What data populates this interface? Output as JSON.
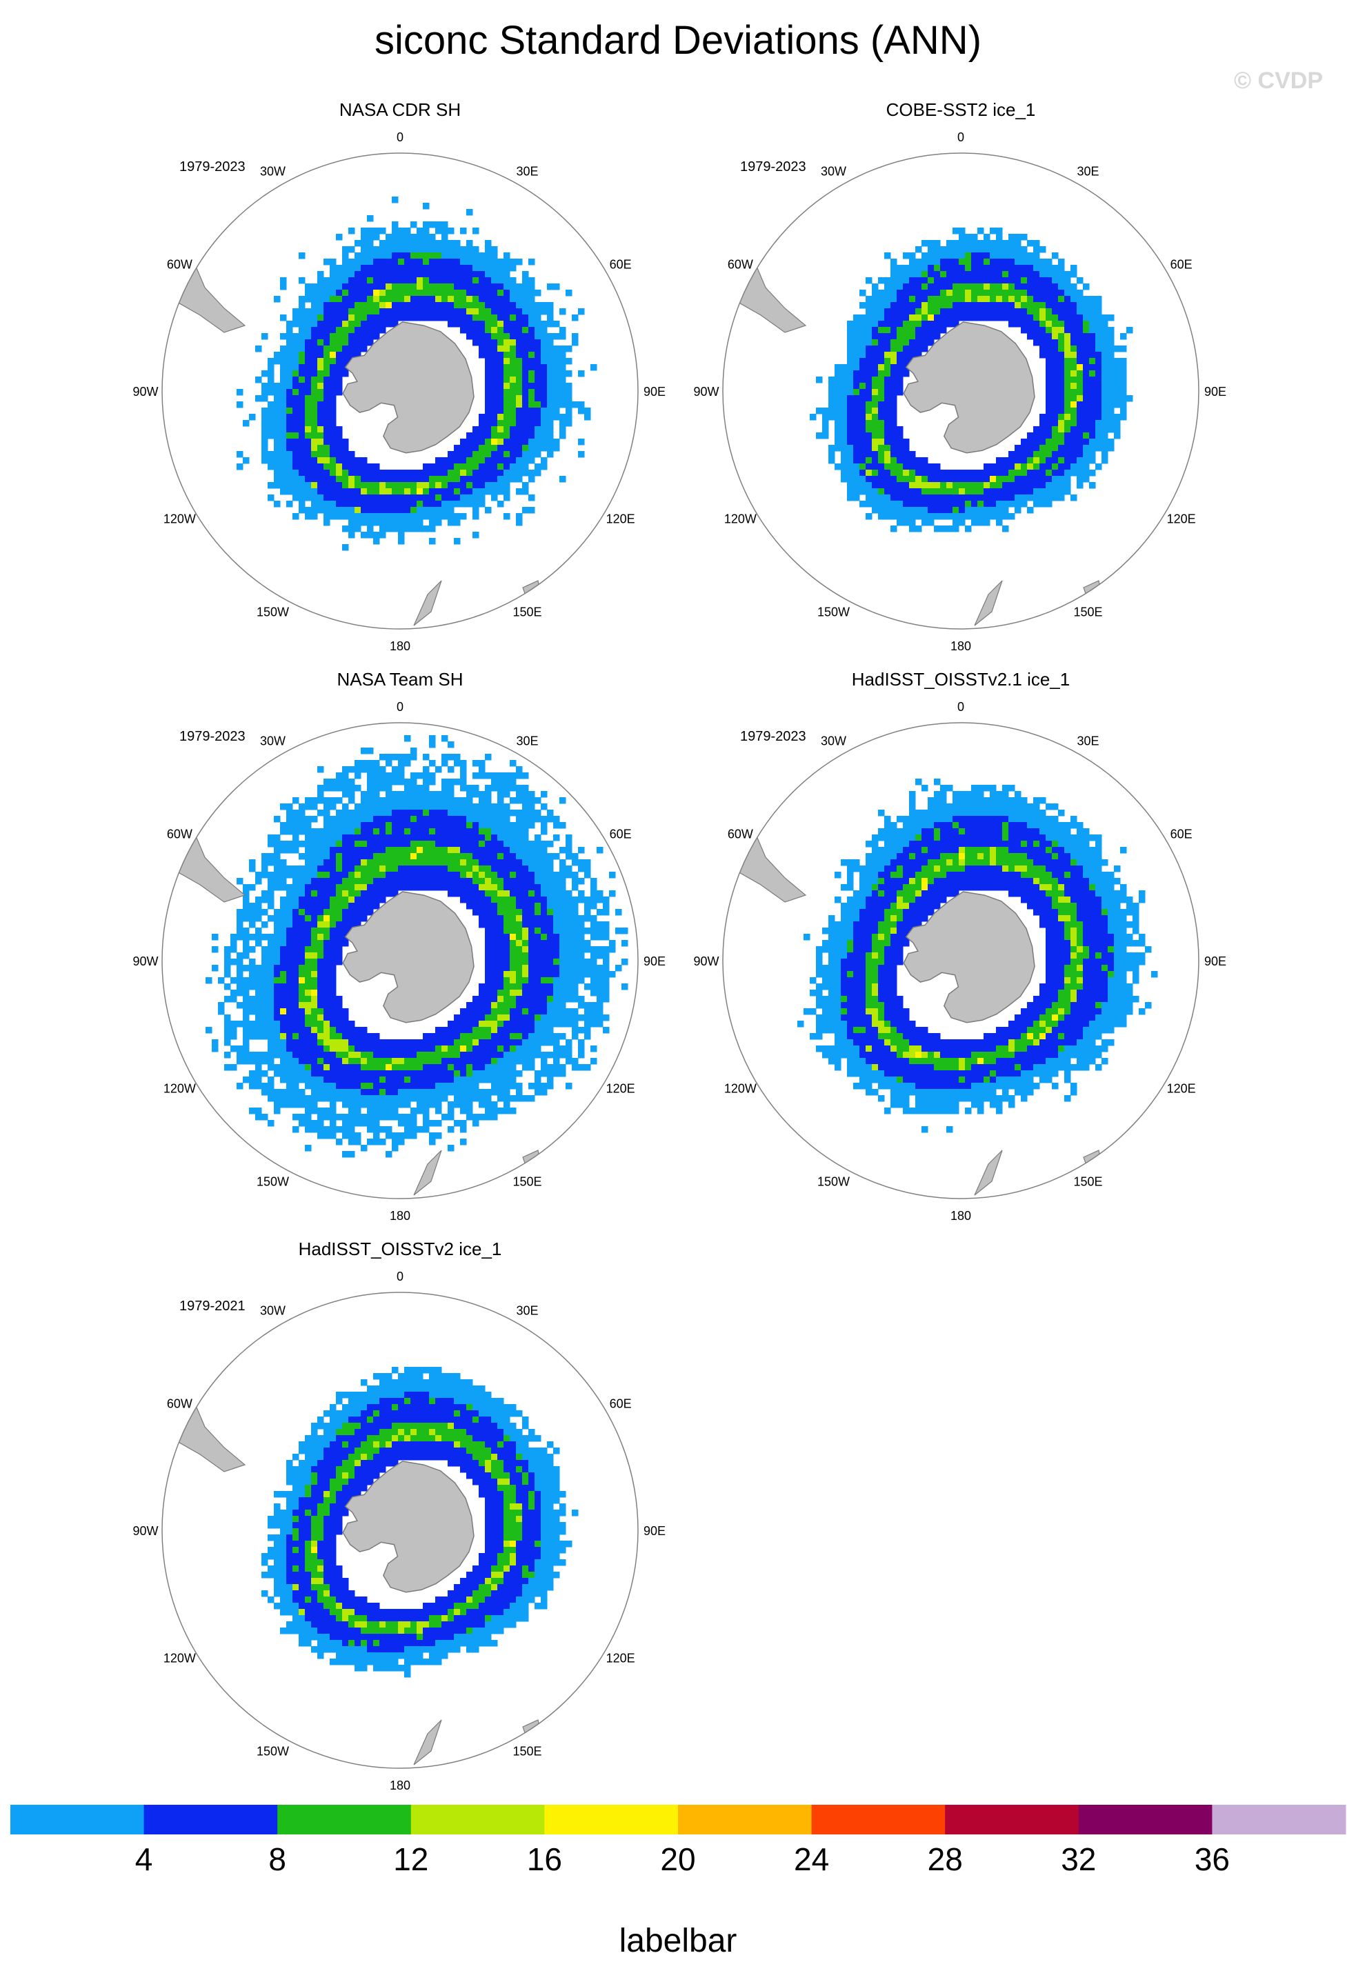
{
  "title": "siconc Standard Deviations (ANN)",
  "watermark": "© CVDP",
  "longitude_labels": [
    "0",
    "30E",
    "60E",
    "90E",
    "120E",
    "150E",
    "180",
    "150W",
    "120W",
    "90W",
    "60W",
    "30W"
  ],
  "colors": {
    "land": "#c0c0c0",
    "coast": "#7a7a7a",
    "watermark": "#d8d8d8"
  },
  "chart_data": [
    {
      "type": "heatmap",
      "title": "NASA CDR SH",
      "period": "1979-2023",
      "projection": "south-polar-stereographic"
    },
    {
      "type": "heatmap",
      "title": "COBE-SST2 ice_1",
      "period": "1979-2023",
      "projection": "south-polar-stereographic"
    },
    {
      "type": "heatmap",
      "title": "NASA Team SH",
      "period": "1979-2023",
      "projection": "south-polar-stereographic"
    },
    {
      "type": "heatmap",
      "title": "HadISST_OISSTv2.1 ice_1",
      "period": "1979-2023",
      "projection": "south-polar-stereographic"
    },
    {
      "type": "heatmap",
      "title": "HadISST_OISSTv2 ice_1",
      "period": "1979-2021",
      "projection": "south-polar-stereographic"
    }
  ],
  "labelbar": {
    "label": "labelbar",
    "ticks": [
      "4",
      "8",
      "12",
      "16",
      "20",
      "24",
      "28",
      "32",
      "36"
    ],
    "colors": [
      "#0fa0f8",
      "#0a28f0",
      "#1ebc18",
      "#b8e806",
      "#fef203",
      "#ffb600",
      "#fd4102",
      "#b60431",
      "#820060",
      "#c8acd8"
    ]
  }
}
